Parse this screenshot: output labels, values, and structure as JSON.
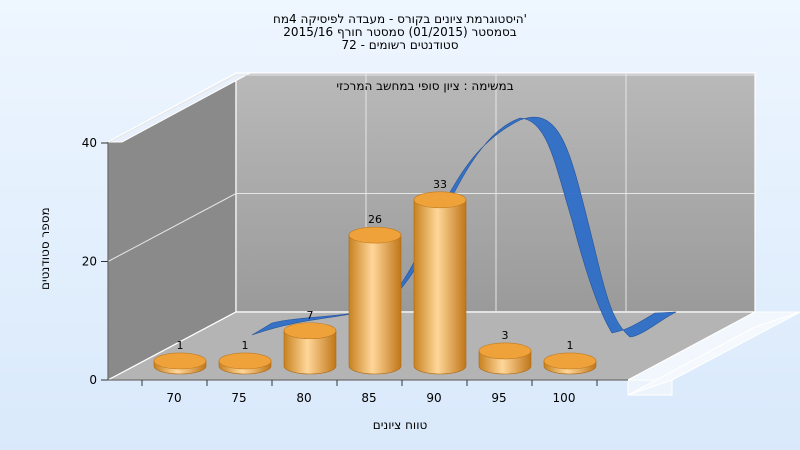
{
  "chart_data": {
    "type": "bar",
    "title_lines": [
      "היסטוגרמת ציונים בקורס - מעבדה לפיסיקה 4מח'",
      "בסמסטר  (01/2015)  סמסטר חורף 2015/16",
      "סטודנטים רשומים - 72"
    ],
    "subtitle": "במשימה : ציון סופי במחשב המרכזי",
    "xlabel": "טווח ציונים",
    "ylabel": "מספר סטודנטים",
    "categories": [
      "70",
      "75",
      "80",
      "85",
      "90",
      "95",
      "100"
    ],
    "values": [
      1,
      1,
      7,
      26,
      33,
      3,
      1
    ],
    "yticks": [
      "0",
      "20",
      "40"
    ],
    "ylim": [
      0,
      40
    ],
    "curve_color": "#2f6fc8",
    "bar_color": "#f2a93e",
    "wall_color": "#a8a8a8",
    "side_wall_color": "#8a8a8a",
    "grid": true
  }
}
